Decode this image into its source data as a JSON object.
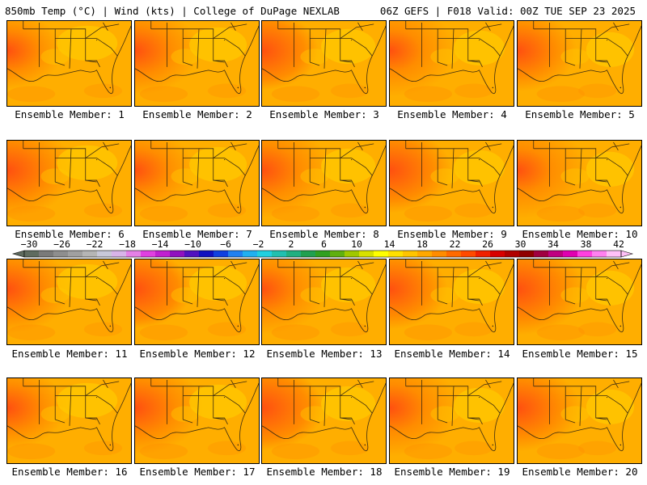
{
  "header": {
    "left": "850mb Temp (°C) | Wind (kts) | College of DuPage NEXLAB",
    "right": "06Z GEFS | F018 Valid: 00Z TUE SEP 23 2025"
  },
  "members": [
    "Ensemble Member: 1",
    "Ensemble Member: 2",
    "Ensemble Member: 3",
    "Ensemble Member: 4",
    "Ensemble Member: 5",
    "Ensemble Member: 6",
    "Ensemble Member: 7",
    "Ensemble Member: 8",
    "Ensemble Member: 9",
    "Ensemble Member: 10",
    "Ensemble Member: 11",
    "Ensemble Member: 12",
    "Ensemble Member: 13",
    "Ensemble Member: 14",
    "Ensemble Member: 15",
    "Ensemble Member: 16",
    "Ensemble Member: 17",
    "Ensemble Member: 18",
    "Ensemble Member: 19",
    "Ensemble Member: 20"
  ],
  "colorbar": {
    "labels": [
      "−30",
      "−26",
      "−22",
      "−18",
      "−14",
      "−10",
      "−6",
      "−2",
      "2",
      "6",
      "10",
      "14",
      "18",
      "22",
      "26",
      "30",
      "34",
      "38",
      "42"
    ],
    "colors": [
      "#5f6b5f",
      "#7a7a7a",
      "#8e8e8e",
      "#a0a0a0",
      "#b5b5b5",
      "#c8c8d8",
      "#d8b4e8",
      "#e580e6",
      "#e040e0",
      "#c020d0",
      "#9010c0",
      "#5010c0",
      "#1010c0",
      "#1040e0",
      "#2080f0",
      "#20b0f0",
      "#20d0e0",
      "#20c0b0",
      "#20b080",
      "#20a050",
      "#30a020",
      "#60b010",
      "#a0c800",
      "#d8e000",
      "#ffff00",
      "#ffe000",
      "#ffc400",
      "#ffa800",
      "#ff8c00",
      "#ff6a00",
      "#ff4a00",
      "#f02000",
      "#d80000",
      "#b00000",
      "#900000",
      "#a00040",
      "#c00080",
      "#e000b0",
      "#ff40e0",
      "#ff80f0",
      "#ffc0f8"
    ]
  },
  "map_colors": {
    "base": "#ffae00",
    "cool": "#ffc800",
    "warm": "#ff8c00",
    "hot": "#ff5010",
    "ocean": "#ffa200",
    "land_line": "#3a2a10"
  }
}
